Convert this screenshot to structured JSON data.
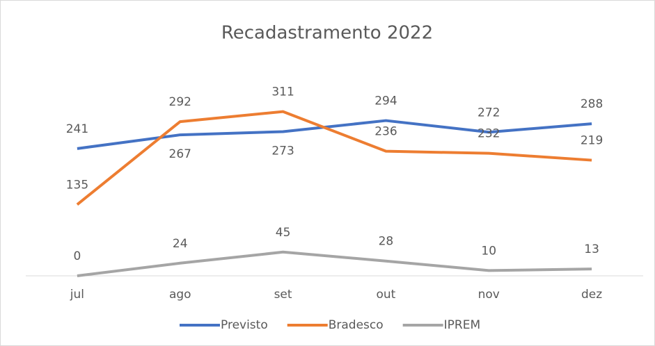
{
  "chart_data": {
    "type": "line",
    "title": "Recadastramento 2022",
    "categories": [
      "jul",
      "ago",
      "set",
      "out",
      "nov",
      "dez"
    ],
    "series": [
      {
        "name": "Previsto",
        "color": "#4472c4",
        "values": [
          241,
          267,
          273,
          294,
          272,
          288
        ]
      },
      {
        "name": "Bradesco",
        "color": "#ed7d31",
        "values": [
          135,
          292,
          311,
          236,
          232,
          219
        ]
      },
      {
        "name": "IPREM",
        "color": "#a5a5a5",
        "values": [
          0,
          24,
          45,
          28,
          10,
          13
        ]
      }
    ],
    "ylim": [
      0,
      350
    ],
    "legend": "bottom"
  }
}
